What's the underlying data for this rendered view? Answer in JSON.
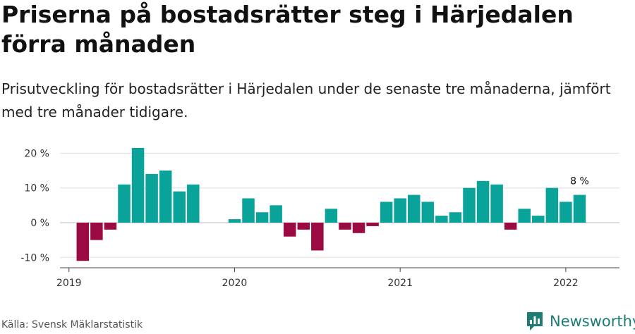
{
  "chart_data": {
    "type": "bar",
    "title": "Priserna på bostadsrätter steg i Härjedalen förra månaden",
    "subtitle": "Prisutveckling för bostadsrätter i Härjedalen under de senaste tre månaderna, jämfört med tre månader tidigare.",
    "xlabel": "",
    "ylabel": "",
    "ylim": [
      -12,
      22
    ],
    "yticks": [
      -10,
      0,
      10,
      20
    ],
    "ytick_labels": [
      "-10 %",
      "0 %",
      "10 %",
      "20 %"
    ],
    "xtick_labels": [
      "2019",
      "2020",
      "2021",
      "2022"
    ],
    "grid": true,
    "colors": {
      "positive": "#0aa39a",
      "negative": "#9b0a43"
    },
    "categories": [
      "2019-01",
      "2019-02",
      "2019-03",
      "2019-04",
      "2019-05",
      "2019-06",
      "2019-07",
      "2019-08",
      "2019-09",
      "2019-10",
      "2019-11",
      "2019-12",
      "2020-01",
      "2020-02",
      "2020-03",
      "2020-04",
      "2020-05",
      "2020-06",
      "2020-07",
      "2020-08",
      "2020-09",
      "2020-10",
      "2020-11",
      "2020-12",
      "2021-01",
      "2021-02",
      "2021-03",
      "2021-04",
      "2021-05",
      "2021-06",
      "2021-07",
      "2021-08",
      "2021-09",
      "2021-10",
      "2021-11",
      "2021-12",
      "2022-01",
      "2022-02"
    ],
    "values": [
      null,
      -11,
      -5,
      -2,
      11,
      21.5,
      14,
      15,
      9,
      11,
      null,
      null,
      1,
      7,
      3,
      5,
      -4,
      -2,
      -8,
      4,
      -2,
      -3,
      -1,
      6,
      7,
      8,
      6,
      2,
      3,
      10,
      12,
      11,
      -2,
      4,
      2,
      10,
      6,
      8
    ],
    "annotation": {
      "text": "8 %",
      "category": "2022-02"
    },
    "source": "Källa: Svensk Mäklarstatistik",
    "brand": "Newsworthy"
  }
}
